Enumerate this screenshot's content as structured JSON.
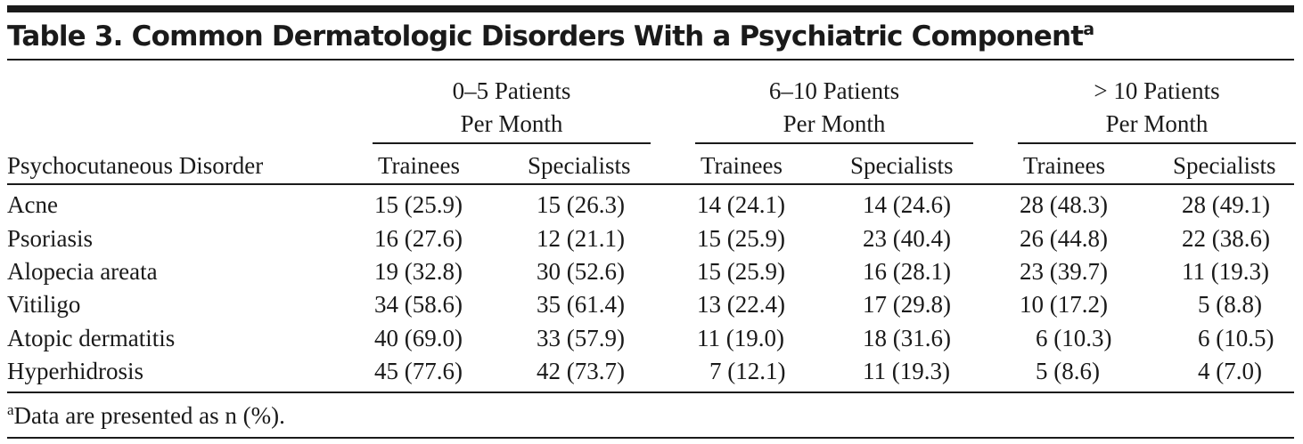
{
  "table": {
    "title": "Table 3. Common Dermatologic Disorders With a Psychiatric Component",
    "title_footnote_mark": "a",
    "groups": [
      {
        "line1": "0–5 Patients",
        "line2": "Per Month"
      },
      {
        "line1": "6–10 Patients",
        "line2": "Per Month"
      },
      {
        "line1": "> 10 Patients",
        "line2": "Per Month"
      }
    ],
    "row_header_label": "Psychocutaneous Disorder",
    "subheaders": [
      "Trainees",
      "Specialists",
      "Trainees",
      "Specialists",
      "Trainees",
      "Specialists"
    ],
    "rows": [
      {
        "label": "Acne",
        "values": [
          "15 (25.9)",
          "15 (26.3)",
          "14 (24.1)",
          "14 (24.6)",
          "28 (48.3)",
          "28 (49.1)"
        ]
      },
      {
        "label": "Psoriasis",
        "values": [
          "16 (27.6)",
          "12 (21.1)",
          "15 (25.9)",
          "23 (40.4)",
          "26 (44.8)",
          "22 (38.6)"
        ]
      },
      {
        "label": "Alopecia areata",
        "values": [
          "19 (32.8)",
          "30 (52.6)",
          "15 (25.9)",
          "16 (28.1)",
          "23 (39.7)",
          "11 (19.3)"
        ]
      },
      {
        "label": "Vitiligo",
        "values": [
          "34 (58.6)",
          "35 (61.4)",
          "13 (22.4)",
          "17 (29.8)",
          "10 (17.2)",
          "5 (8.8)"
        ]
      },
      {
        "label": "Atopic dermatitis",
        "values": [
          "40 (69.0)",
          "33 (57.9)",
          "11 (19.0)",
          "18 (31.6)",
          "6 (10.3)",
          "6 (10.5)"
        ]
      },
      {
        "label": "Hyperhidrosis",
        "values": [
          "45 (77.6)",
          "42 (73.7)",
          "7 (12.1)",
          "11 (19.3)",
          "5 (8.6)",
          "4 (7.0)"
        ]
      }
    ],
    "footnote_mark": "a",
    "footnote": "Data are presented as n (%)."
  }
}
